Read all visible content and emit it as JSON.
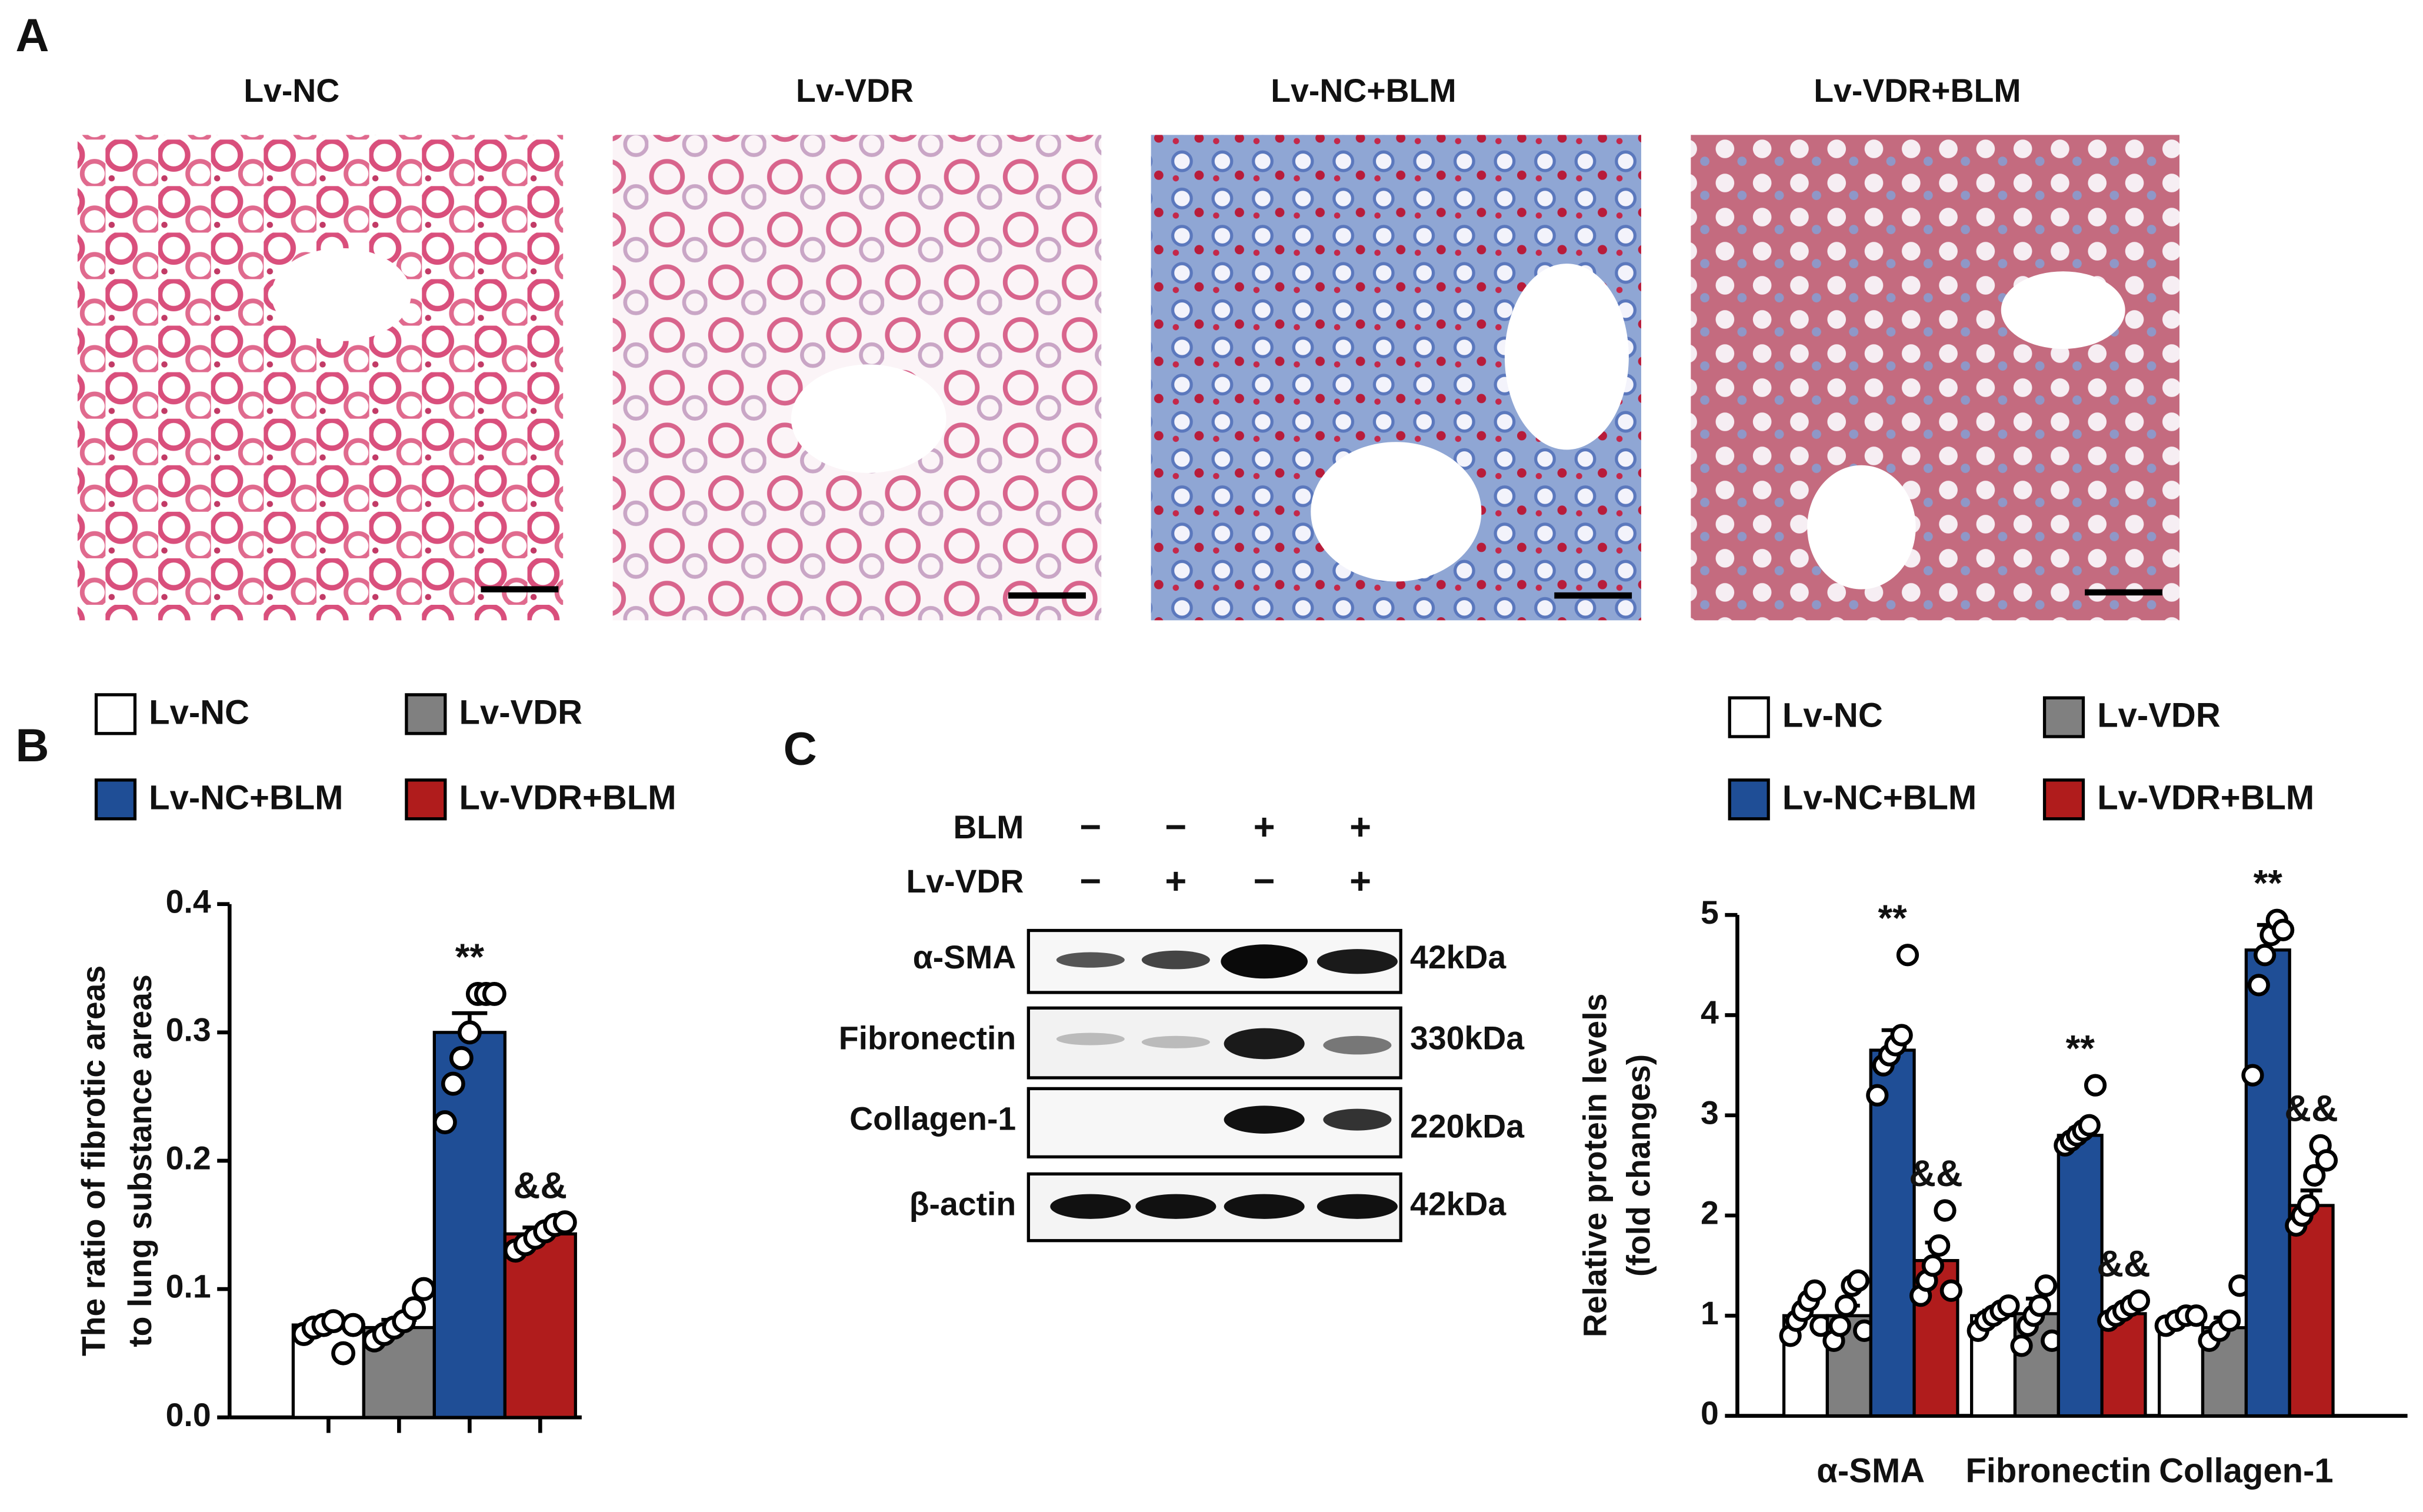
{
  "panels": [
    "A",
    "B",
    "C"
  ],
  "histology": {
    "titles": [
      "Lv-NC",
      "Lv-VDR",
      "Lv-NC+BLM",
      "Lv-VDR+BLM"
    ]
  },
  "blot": {
    "rows": [
      {
        "label": "BLM",
        "signs": [
          "−",
          "−",
          "+",
          "+"
        ]
      },
      {
        "label": "Lv-VDR",
        "signs": [
          "−",
          "+",
          "−",
          "+"
        ]
      }
    ],
    "proteins": [
      {
        "name": "α-SMA",
        "size": "42kDa"
      },
      {
        "name": "Fibronectin",
        "size": "330kDa"
      },
      {
        "name": "Collagen-1",
        "size": "220kDa"
      },
      {
        "name": "β-actin",
        "size": "42kDa"
      }
    ]
  },
  "chart_data": [
    {
      "type": "bar",
      "ylabel": [
        "The ratio of fibrotic areas",
        "to lung substance areas"
      ],
      "categories": [
        null
      ],
      "ylim": [
        0,
        0.4
      ],
      "yticks": [
        {
          "value": 0,
          "label": "0.0"
        },
        0.1,
        0.2,
        0.3,
        0.4
      ],
      "series": [
        {
          "name": "Lv-NC",
          "color": "#ffffff",
          "values": [
            0.072
          ],
          "errors": [
            0.005
          ],
          "points": [
            [
              0.065,
              0.07,
              0.072,
              0.075,
              0.05,
              0.072
            ]
          ]
        },
        {
          "name": "Lv-VDR",
          "color": "#808080",
          "values": [
            0.07
          ],
          "errors": [
            0.006
          ],
          "points": [
            [
              0.06,
              0.065,
              0.07,
              0.075,
              0.085,
              0.1
            ]
          ]
        },
        {
          "name": "Lv-NC+BLM",
          "color": "#1f4e96",
          "values": [
            0.3
          ],
          "errors": [
            0.015
          ],
          "points": [
            [
              0.23,
              0.26,
              0.28,
              0.3,
              0.33,
              0.33,
              0.33
            ]
          ],
          "labels": [
            "**"
          ]
        },
        {
          "name": "Lv-VDR+BLM",
          "color": "#b01c1c",
          "values": [
            0.143
          ],
          "errors": [
            0.005
          ],
          "points": [
            [
              0.13,
              0.135,
              0.14,
              0.145,
              0.15,
              0.152
            ]
          ],
          "labels": [
            "&&"
          ]
        }
      ]
    },
    {
      "type": "bar",
      "ylabel": [
        "Relative protein levels",
        "(fold changes)"
      ],
      "categories": [
        "α-SMA",
        "Fibronectin",
        "Collagen-1"
      ],
      "ylim": [
        0,
        5
      ],
      "yticks": [
        0,
        1,
        2,
        3,
        4,
        5
      ],
      "series": [
        {
          "name": "Lv-NC",
          "color": "#ffffff",
          "values": [
            1.0,
            1.0,
            0.95
          ],
          "errors": [
            0.1,
            0.05,
            0.05
          ],
          "points": [
            [
              0.8,
              0.95,
              1.05,
              1.15,
              1.25,
              0.9
            ],
            [
              0.85,
              0.95,
              1.0,
              1.05,
              1.1
            ],
            [
              0.9,
              0.95,
              1.0,
              1.0
            ]
          ]
        },
        {
          "name": "Lv-VDR",
          "color": "#808080",
          "values": [
            1.0,
            1.02,
            0.88
          ],
          "errors": [
            0.1,
            0.15,
            0.1
          ],
          "points": [
            [
              0.75,
              0.9,
              1.1,
              1.3,
              1.35,
              0.85
            ],
            [
              0.7,
              0.9,
              1.0,
              1.1,
              1.3,
              0.75
            ],
            [
              0.75,
              0.85,
              0.95,
              1.3
            ]
          ]
        },
        {
          "name": "Lv-NC+BLM",
          "color": "#1f4e96",
          "values": [
            3.65,
            2.8,
            4.65
          ],
          "errors": [
            0.2,
            0.07,
            0.25
          ],
          "points": [
            [
              3.2,
              3.5,
              3.6,
              3.7,
              3.8,
              4.6
            ],
            [
              2.7,
              2.75,
              2.8,
              2.85,
              2.9,
              3.3
            ],
            [
              3.4,
              4.3,
              4.6,
              4.8,
              4.95,
              4.85
            ]
          ],
          "labels": [
            "**",
            "**",
            "**"
          ]
        },
        {
          "name": "Lv-VDR+BLM",
          "color": "#b01c1c",
          "values": [
            1.55,
            1.02,
            2.1
          ],
          "errors": [
            0.18,
            0.05,
            0.15
          ],
          "points": [
            [
              1.2,
              1.35,
              1.5,
              1.7,
              2.05,
              1.25
            ],
            [
              0.95,
              1.0,
              1.05,
              1.1,
              1.15
            ],
            [
              1.9,
              2.0,
              2.1,
              2.4,
              2.7,
              2.55
            ]
          ],
          "labels": [
            "&&",
            "&&",
            "&&"
          ]
        }
      ]
    }
  ]
}
